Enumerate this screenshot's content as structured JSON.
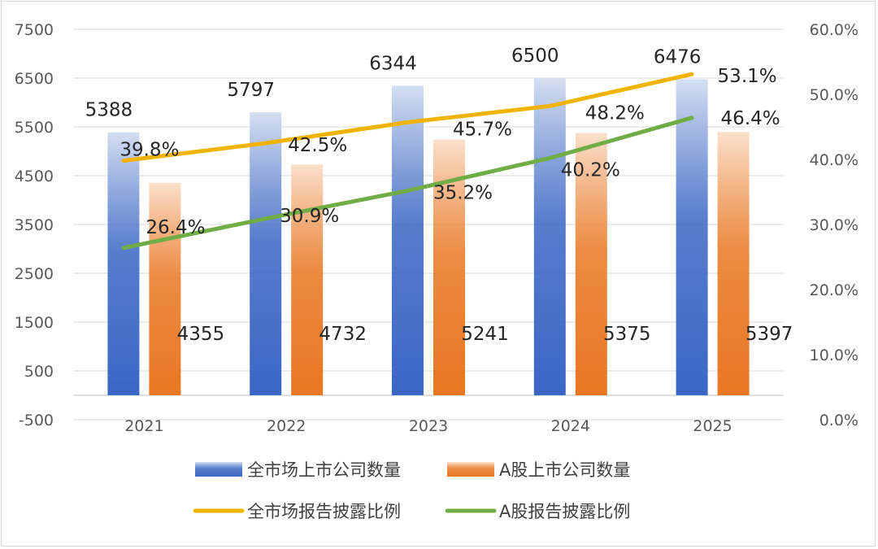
{
  "chart_data": {
    "type": "bar+line",
    "categories": [
      "2021",
      "2022",
      "2023",
      "2024",
      "2025"
    ],
    "bar_series": [
      {
        "name": "全市场上市公司数量",
        "values": [
          5388,
          5797,
          6344,
          6500,
          6476
        ],
        "color": "#4472c4"
      },
      {
        "name": "A股上市公司数量",
        "values": [
          4355,
          4732,
          5241,
          5375,
          5397
        ],
        "color": "#ed7d31"
      }
    ],
    "line_series": [
      {
        "name": "全市场报告披露比例",
        "values": [
          39.8,
          42.5,
          45.7,
          48.2,
          53.1
        ],
        "labels": [
          "39.8%",
          "42.5%",
          "45.7%",
          "48.2%",
          "53.1%"
        ],
        "color": "#f0b400"
      },
      {
        "name": "A股报告披露比例",
        "values": [
          26.4,
          30.9,
          35.2,
          40.2,
          46.4
        ],
        "labels": [
          "26.4%",
          "30.9%",
          "35.2%",
          "40.2%",
          "46.4%"
        ],
        "color": "#70ad47"
      }
    ],
    "y_left": {
      "ticks": [
        "7500",
        "6500",
        "5500",
        "4500",
        "3500",
        "2500",
        "1500",
        "500",
        "-500"
      ],
      "min": -500,
      "max": 7500
    },
    "y_right": {
      "ticks": [
        "60.0%",
        "50.0%",
        "40.0%",
        "30.0%",
        "20.0%",
        "10.0%",
        "0.0%"
      ],
      "min": 0,
      "max": 60
    },
    "legend_position": "bottom",
    "grid": true
  }
}
